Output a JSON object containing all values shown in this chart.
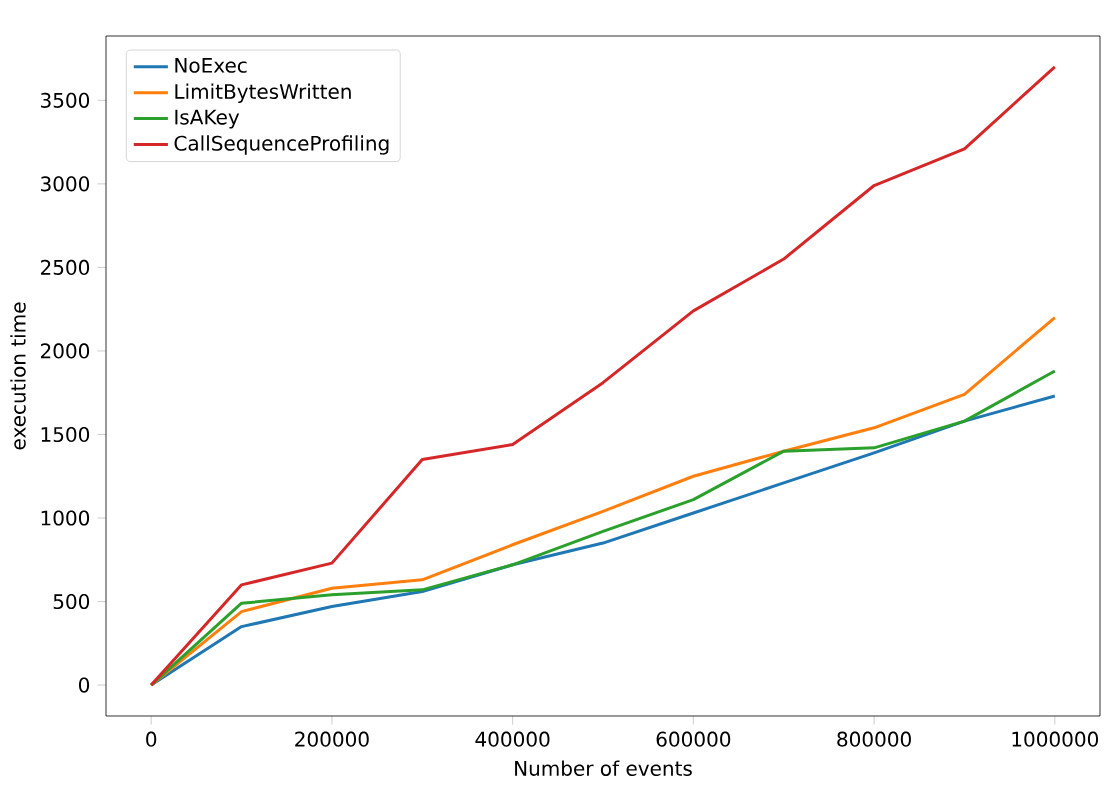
{
  "chart_data": {
    "type": "line",
    "xlabel": "Number of events",
    "ylabel": "execution time",
    "x": [
      0,
      100000,
      200000,
      300000,
      400000,
      500000,
      600000,
      700000,
      800000,
      900000,
      1000000
    ],
    "series": [
      {
        "name": "NoExec",
        "color": "#1f77b4",
        "values": [
          0,
          350,
          470,
          560,
          720,
          850,
          1030,
          1210,
          1390,
          1580,
          1730
        ]
      },
      {
        "name": "LimitBytesWritten",
        "color": "#ff7f0e",
        "values": [
          0,
          440,
          580,
          630,
          840,
          1040,
          1250,
          1400,
          1540,
          1740,
          2200
        ]
      },
      {
        "name": "IsAKey",
        "color": "#2ca02c",
        "values": [
          0,
          490,
          540,
          570,
          720,
          920,
          1110,
          1400,
          1420,
          1580,
          1880
        ]
      },
      {
        "name": "CallSequenceProfiling",
        "color": "#d62728",
        "values": [
          0,
          600,
          730,
          1350,
          1440,
          1810,
          2240,
          2550,
          2990,
          3210,
          3700
        ]
      }
    ],
    "xlim": [
      -50000,
      1050000
    ],
    "ylim": [
      -185,
      3885
    ],
    "xticks": [
      0,
      200000,
      400000,
      600000,
      800000,
      1000000
    ],
    "yticks": [
      0,
      500,
      1000,
      1500,
      2000,
      2500,
      3000,
      3500
    ],
    "legend": "top left",
    "grid": false,
    "marker": "none",
    "line_style": "solid"
  }
}
